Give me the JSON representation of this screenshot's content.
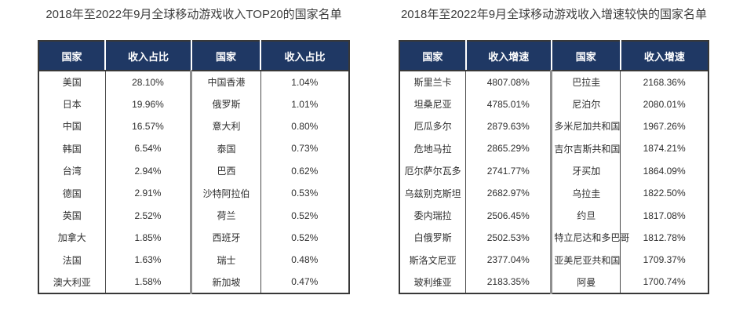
{
  "colors": {
    "header_bg": "#1f3864",
    "header_text": "#ffffff",
    "body_text": "#2f2f2f",
    "title_text": "#3c3c3c",
    "border_dark": "#383838",
    "divider_mid": "#8f8f8f"
  },
  "tables": [
    {
      "id": "revenue-top20",
      "title": "2018年至2022年9月全球移动游戏收入TOP20的国家名单",
      "headers": [
        "国家",
        "收入占比",
        "国家",
        "收入占比"
      ],
      "rows": [
        [
          "美国",
          "28.10%",
          "中国香港",
          "1.04%"
        ],
        [
          "日本",
          "19.96%",
          "俄罗斯",
          "1.01%"
        ],
        [
          "中国",
          "16.57%",
          "意大利",
          "0.80%"
        ],
        [
          "韩国",
          "6.54%",
          "泰国",
          "0.73%"
        ],
        [
          "台湾",
          "2.94%",
          "巴西",
          "0.62%"
        ],
        [
          "德国",
          "2.91%",
          "沙特阿拉伯",
          "0.53%"
        ],
        [
          "英国",
          "2.52%",
          "荷兰",
          "0.52%"
        ],
        [
          "加拿大",
          "1.85%",
          "西班牙",
          "0.52%"
        ],
        [
          "法国",
          "1.63%",
          "瑞士",
          "0.48%"
        ],
        [
          "澳大利亚",
          "1.58%",
          "新加坡",
          "0.47%"
        ]
      ]
    },
    {
      "id": "revenue-growth",
      "title": "2018年至2022年9月全球移动游戏收入增速较快的国家名单",
      "headers": [
        "国家",
        "收入增速",
        "国家",
        "收入增速"
      ],
      "rows": [
        [
          "斯里兰卡",
          "4807.08%",
          "巴拉圭",
          "2168.36%"
        ],
        [
          "坦桑尼亚",
          "4785.01%",
          "尼泊尔",
          "2080.01%"
        ],
        [
          "厄瓜多尔",
          "2879.63%",
          "多米尼加共和国",
          "1967.26%"
        ],
        [
          "危地马拉",
          "2865.29%",
          "吉尔吉斯共和国",
          "1874.21%"
        ],
        [
          "厄尔萨尔瓦多",
          "2741.77%",
          "牙买加",
          "1864.09%"
        ],
        [
          "乌兹别克斯坦",
          "2682.97%",
          "乌拉圭",
          "1822.50%"
        ],
        [
          "委内瑞拉",
          "2506.45%",
          "约旦",
          "1817.08%"
        ],
        [
          "白俄罗斯",
          "2502.53%",
          "特立尼达和多巴哥",
          "1812.78%"
        ],
        [
          "斯洛文尼亚",
          "2377.04%",
          "亚美尼亚共和国",
          "1709.37%"
        ],
        [
          "玻利维亚",
          "2183.35%",
          "阿曼",
          "1700.74%"
        ]
      ]
    }
  ]
}
